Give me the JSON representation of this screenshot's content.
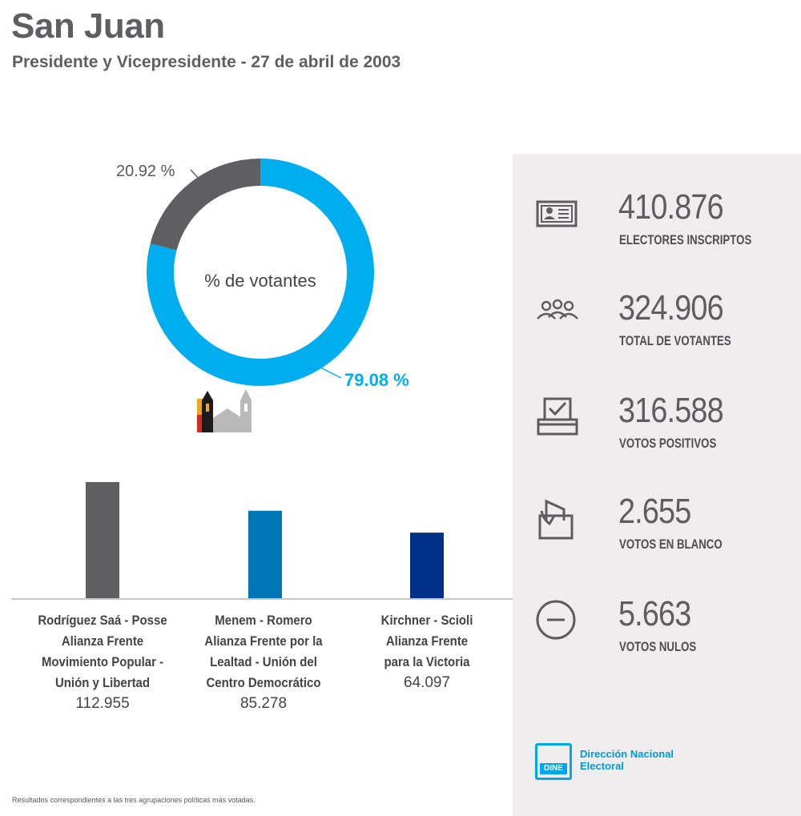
{
  "header": {
    "title": "San Juan",
    "subtitle": "Presidente y Vicepresidente - 27 de abril de 2003"
  },
  "chart_data": [
    {
      "type": "pie",
      "title": "% de votantes",
      "slices": [
        {
          "label": "79.08 %",
          "value": 79.08,
          "color": "#00aeef"
        },
        {
          "label": "20.92 %",
          "value": 20.92,
          "color": "#5f5f61"
        }
      ]
    },
    {
      "type": "bar",
      "categories": [
        "Rodríguez Saá - Posse\nAlianza Frente\nMovimiento Popular -\nUnión y Libertad",
        "Menem - Romero\nAlianza Frente por la\nLealtad - Unión del\nCentro Democrático",
        "Kirchner - Scioli\nAlianza Frente\npara la Victoria"
      ],
      "values": [
        112955,
        85278,
        64097
      ],
      "value_labels": [
        "112.955",
        "85.278",
        "64.097"
      ],
      "colors": [
        "#5f5f61",
        "#0076b6",
        "#003087"
      ]
    }
  ],
  "stats": [
    {
      "icon": "id-card-icon",
      "value": "410.876",
      "label": "ELECTORES INSCRIPTOS"
    },
    {
      "icon": "people-icon",
      "value": "324.906",
      "label": "TOTAL DE VOTANTES"
    },
    {
      "icon": "ballot-check-icon",
      "value": "316.588",
      "label": "VOTOS POSITIVOS"
    },
    {
      "icon": "blank-vote-icon",
      "value": "2.655",
      "label": "VOTOS EN BLANCO"
    },
    {
      "icon": "minus-circle-icon",
      "value": "5.663",
      "label": "VOTOS NULOS"
    }
  ],
  "logo": {
    "badge": "DINE",
    "text": "Dirección Nacional\nElectoral"
  },
  "footnote": "Resultados correspondientes a las tres agrupaciones políticas más votadas.",
  "colors": {
    "accent": "#00aeef",
    "gray": "#5f5f61",
    "panel": "#efeded"
  }
}
